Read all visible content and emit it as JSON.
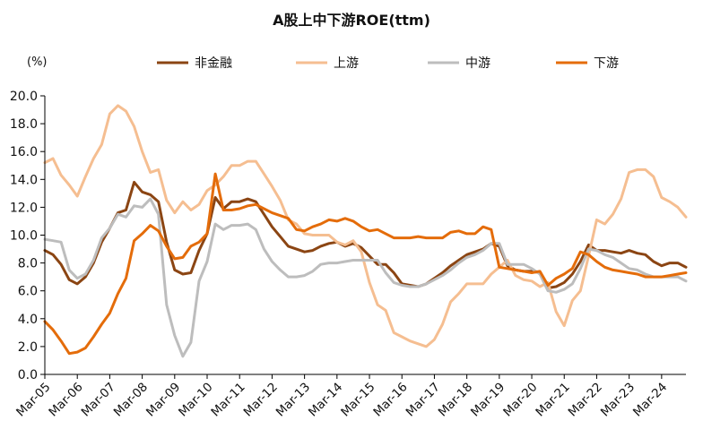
{
  "chart_data": {
    "type": "line",
    "title": "A股上中下游ROE(ttm)",
    "unit_label": "(%)",
    "xlabel": "",
    "ylabel": "",
    "ylim": [
      0,
      20
    ],
    "yticks": [
      "0.0",
      "2.0",
      "4.0",
      "6.0",
      "8.0",
      "10.0",
      "12.0",
      "14.0",
      "16.0",
      "18.0",
      "20.0"
    ],
    "xtick_labels": [
      "Mar-05",
      "Mar-06",
      "Mar-07",
      "Mar-08",
      "Mar-09",
      "Mar-10",
      "Mar-11",
      "Mar-12",
      "Mar-13",
      "Mar-14",
      "Mar-15",
      "Mar-16",
      "Mar-17",
      "Mar-18",
      "Mar-19",
      "Mar-20",
      "Mar-21",
      "Mar-22",
      "Mar-23",
      "Mar-24"
    ],
    "x_start": "Mar-05",
    "x_step": "quarter",
    "grid": false,
    "legend_position": "top",
    "series": [
      {
        "name": "非金融",
        "color": "#8B4513",
        "values": [
          8.9,
          8.6,
          7.9,
          6.8,
          6.5,
          7.0,
          8.0,
          9.5,
          10.5,
          11.6,
          11.8,
          13.8,
          13.1,
          12.9,
          12.4,
          9.5,
          7.5,
          7.2,
          7.3,
          8.9,
          10.1,
          12.7,
          11.9,
          12.4,
          12.4,
          12.6,
          12.4,
          11.5,
          10.6,
          9.9,
          9.2,
          9.0,
          8.8,
          8.9,
          9.2,
          9.4,
          9.5,
          9.2,
          9.4,
          9.1,
          8.5,
          7.9,
          7.9,
          7.3,
          6.5,
          6.4,
          6.3,
          6.5,
          6.9,
          7.3,
          7.8,
          8.2,
          8.6,
          8.8,
          9.0,
          9.4,
          9.2,
          7.8,
          7.5,
          7.4,
          7.4,
          7.3,
          6.2,
          6.3,
          6.6,
          7.2,
          8.1,
          9.3,
          8.9,
          8.9,
          8.8,
          8.7,
          8.9,
          8.7,
          8.6,
          8.1,
          7.8,
          8.0,
          8.0,
          7.7
        ]
      },
      {
        "name": "上游",
        "color": "#F5BE91",
        "values": [
          15.2,
          15.5,
          14.3,
          13.6,
          12.8,
          14.2,
          15.5,
          16.5,
          18.7,
          19.3,
          18.9,
          17.8,
          16.0,
          14.5,
          14.7,
          12.5,
          11.6,
          12.4,
          11.8,
          12.2,
          13.2,
          13.6,
          14.2,
          15.0,
          15.0,
          15.3,
          15.3,
          14.4,
          13.5,
          12.5,
          11.1,
          10.8,
          10.1,
          10.0,
          10.0,
          10.0,
          9.5,
          9.3,
          9.6,
          8.8,
          6.6,
          5.0,
          4.6,
          3.0,
          2.7,
          2.4,
          2.2,
          2.0,
          2.5,
          3.6,
          5.2,
          5.8,
          6.5,
          6.5,
          6.5,
          7.2,
          7.7,
          8.2,
          7.1,
          6.8,
          6.7,
          6.3,
          6.6,
          4.5,
          3.5,
          5.3,
          6.0,
          8.5,
          11.1,
          10.8,
          11.5,
          12.6,
          14.5,
          14.7,
          14.7,
          14.2,
          12.7,
          12.4,
          12.0,
          11.3
        ]
      },
      {
        "name": "中游",
        "color": "#BDBDBD",
        "values": [
          9.7,
          9.6,
          9.5,
          7.5,
          6.9,
          7.2,
          8.2,
          9.8,
          10.5,
          11.5,
          11.3,
          12.1,
          12.0,
          12.6,
          11.5,
          5.0,
          2.8,
          1.3,
          2.3,
          6.7,
          8.1,
          10.8,
          10.4,
          10.7,
          10.7,
          10.8,
          10.4,
          9.0,
          8.1,
          7.5,
          7.0,
          7.0,
          7.1,
          7.4,
          7.9,
          8.0,
          8.0,
          8.1,
          8.2,
          8.2,
          8.2,
          8.2,
          7.3,
          6.6,
          6.4,
          6.3,
          6.3,
          6.5,
          6.8,
          7.1,
          7.5,
          8.0,
          8.4,
          8.6,
          8.9,
          9.4,
          9.4,
          7.9,
          7.9,
          7.9,
          7.6,
          7.2,
          6.0,
          5.9,
          6.1,
          6.5,
          7.6,
          9.0,
          8.9,
          8.6,
          8.4,
          8.0,
          7.6,
          7.5,
          7.2,
          7.0,
          7.0,
          7.0,
          7.0,
          6.7
        ]
      },
      {
        "name": "下游",
        "color": "#E46C0A",
        "values": [
          3.8,
          3.2,
          2.4,
          1.5,
          1.6,
          1.9,
          2.7,
          3.6,
          4.4,
          5.8,
          6.9,
          9.6,
          10.1,
          10.7,
          10.3,
          9.2,
          8.3,
          8.4,
          9.2,
          9.5,
          10.1,
          14.4,
          11.8,
          11.8,
          11.9,
          12.1,
          12.2,
          11.9,
          11.6,
          11.4,
          11.2,
          10.4,
          10.3,
          10.6,
          10.8,
          11.1,
          11.0,
          11.2,
          11.0,
          10.6,
          10.3,
          10.4,
          10.1,
          9.8,
          9.8,
          9.8,
          9.9,
          9.8,
          9.8,
          9.8,
          10.2,
          10.3,
          10.1,
          10.1,
          10.6,
          10.4,
          7.7,
          7.6,
          7.5,
          7.4,
          7.3,
          7.4,
          6.4,
          6.9,
          7.2,
          7.6,
          8.8,
          8.6,
          8.1,
          7.7,
          7.5,
          7.4,
          7.3,
          7.2,
          7.0,
          7.0,
          7.0,
          7.1,
          7.2,
          7.3
        ]
      }
    ]
  }
}
